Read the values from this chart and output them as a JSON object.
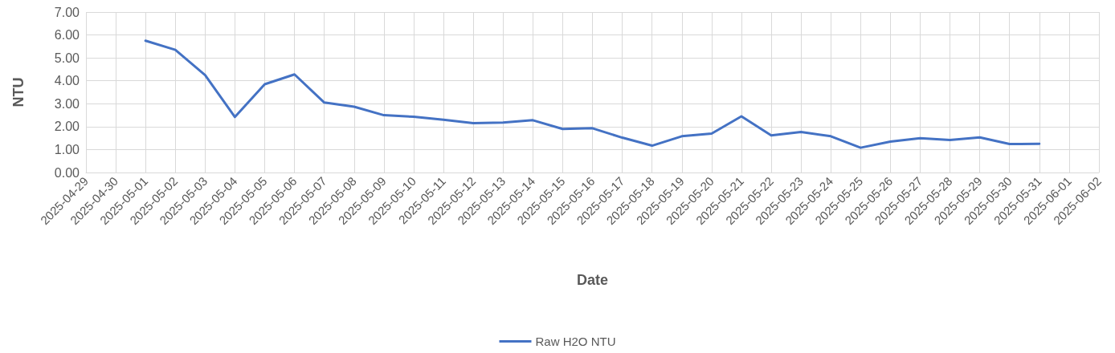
{
  "chart_data": {
    "type": "line",
    "xlabel": "Date",
    "ylabel": "NTU",
    "categories": [
      "2025-04-29",
      "2025-04-30",
      "2025-05-01",
      "2025-05-02",
      "2025-05-03",
      "2025-05-04",
      "2025-05-05",
      "2025-05-06",
      "2025-05-07",
      "2025-05-08",
      "2025-05-09",
      "2025-05-10",
      "2025-05-11",
      "2025-05-12",
      "2025-05-13",
      "2025-05-14",
      "2025-05-15",
      "2025-05-16",
      "2025-05-17",
      "2025-05-18",
      "2025-05-19",
      "2025-05-20",
      "2025-05-21",
      "2025-05-22",
      "2025-05-23",
      "2025-05-24",
      "2025-05-25",
      "2025-05-26",
      "2025-05-27",
      "2025-05-28",
      "2025-05-29",
      "2025-05-30",
      "2025-05-31",
      "2025-06-01",
      "2025-06-02"
    ],
    "series": [
      {
        "name": "Raw H2O NTU",
        "color": "#4472c4",
        "values": [
          null,
          null,
          5.75,
          5.35,
          4.25,
          2.42,
          3.85,
          4.28,
          3.05,
          2.87,
          2.5,
          2.43,
          2.3,
          2.15,
          2.18,
          2.28,
          1.9,
          1.93,
          1.52,
          1.17,
          1.58,
          1.7,
          2.45,
          1.62,
          1.77,
          1.58,
          1.08,
          1.35,
          1.5,
          1.42,
          1.53,
          1.24,
          1.25,
          null,
          null
        ]
      }
    ],
    "ylim": [
      0,
      7
    ],
    "yticks": [
      {
        "value": 0,
        "label": "0.00"
      },
      {
        "value": 1,
        "label": "1.00"
      },
      {
        "value": 2,
        "label": "2.00"
      },
      {
        "value": 3,
        "label": "3.00"
      },
      {
        "value": 4,
        "label": "4.00"
      },
      {
        "value": 5,
        "label": "5.00"
      },
      {
        "value": 6,
        "label": "6.00"
      },
      {
        "value": 7,
        "label": "7.00"
      }
    ],
    "grid": true,
    "legend": "bottom",
    "marker": "none",
    "line_style": "solid"
  }
}
